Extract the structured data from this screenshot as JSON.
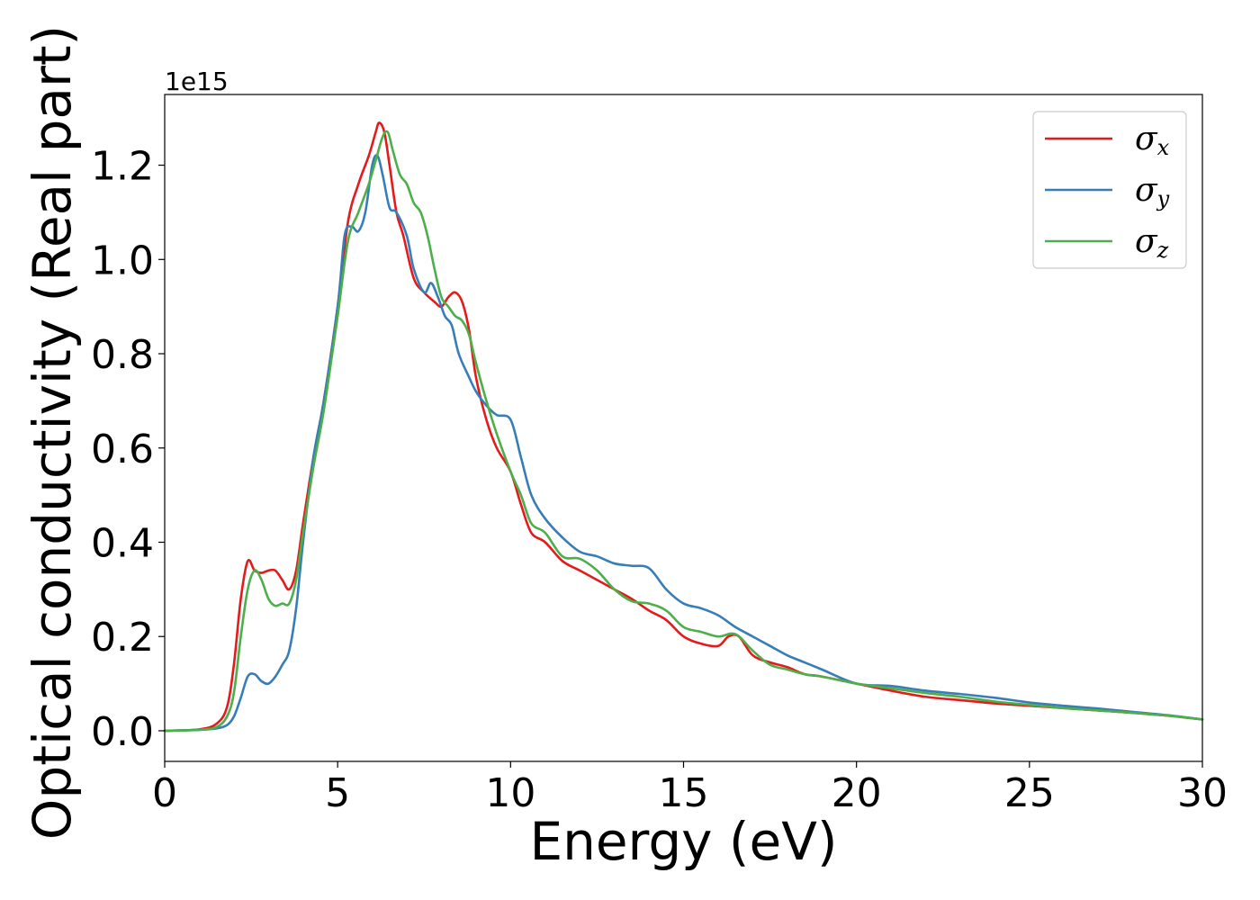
{
  "chart_data": {
    "type": "line",
    "title": "",
    "xlabel": "Energy (eV)",
    "ylabel": "Optical conductivity (Real part)",
    "y_offset_label": "1e15",
    "xlim": [
      0,
      30
    ],
    "ylim": [
      -0.065,
      1.35
    ],
    "x_ticks": [
      0,
      5,
      10,
      15,
      20,
      25,
      30
    ],
    "x_tick_labels": [
      "0",
      "5",
      "10",
      "15",
      "20",
      "25",
      "30"
    ],
    "y_ticks": [
      0.0,
      0.2,
      0.4,
      0.6,
      0.8,
      1.0,
      1.2
    ],
    "y_tick_labels": [
      "0.0",
      "0.2",
      "0.4",
      "0.6",
      "0.8",
      "1.0",
      "1.2"
    ],
    "grid": false,
    "legend_position": "top-right",
    "series": [
      {
        "name": "σx",
        "symbol": "σ",
        "subscript": "x",
        "color": "#e41a1c",
        "x": [
          0,
          1,
          1.5,
          1.8,
          2.0,
          2.2,
          2.4,
          2.6,
          2.8,
          3.0,
          3.2,
          3.4,
          3.6,
          3.8,
          4.0,
          4.3,
          4.6,
          5.0,
          5.3,
          5.6,
          5.9,
          6.1,
          6.2,
          6.35,
          6.5,
          6.7,
          6.9,
          7.2,
          7.5,
          7.8,
          8.0,
          8.2,
          8.4,
          8.6,
          8.8,
          9.0,
          9.3,
          9.6,
          10.0,
          10.3,
          10.6,
          11.0,
          11.5,
          12.0,
          12.5,
          13.0,
          13.5,
          14.0,
          14.5,
          15.0,
          15.5,
          16.0,
          16.3,
          16.6,
          17.0,
          17.5,
          18.0,
          18.5,
          19.0,
          20.0,
          21.0,
          22.0,
          23.0,
          24.0,
          25.0,
          26.0,
          27.0,
          28.0,
          29.0,
          30.0
        ],
        "y": [
          0,
          0.003,
          0.015,
          0.05,
          0.14,
          0.28,
          0.36,
          0.34,
          0.335,
          0.34,
          0.34,
          0.32,
          0.3,
          0.34,
          0.44,
          0.58,
          0.7,
          0.9,
          1.08,
          1.16,
          1.22,
          1.27,
          1.29,
          1.27,
          1.2,
          1.1,
          1.05,
          0.96,
          0.93,
          0.91,
          0.9,
          0.92,
          0.93,
          0.91,
          0.85,
          0.75,
          0.66,
          0.6,
          0.55,
          0.48,
          0.42,
          0.4,
          0.36,
          0.34,
          0.32,
          0.3,
          0.28,
          0.255,
          0.235,
          0.2,
          0.185,
          0.18,
          0.2,
          0.2,
          0.16,
          0.145,
          0.135,
          0.12,
          0.115,
          0.1,
          0.085,
          0.072,
          0.065,
          0.058,
          0.053,
          0.048,
          0.043,
          0.038,
          0.032,
          0.024
        ]
      },
      {
        "name": "σy",
        "symbol": "σ",
        "subscript": "y",
        "color": "#377eb8",
        "x": [
          0,
          1,
          1.5,
          1.8,
          2.0,
          2.2,
          2.4,
          2.6,
          2.8,
          3.0,
          3.2,
          3.4,
          3.6,
          3.8,
          4.0,
          4.3,
          4.6,
          5.0,
          5.2,
          5.4,
          5.6,
          5.8,
          6.0,
          6.15,
          6.3,
          6.5,
          6.7,
          7.0,
          7.2,
          7.5,
          7.7,
          7.9,
          8.1,
          8.3,
          8.5,
          8.8,
          9.0,
          9.3,
          9.6,
          10.0,
          10.3,
          10.6,
          11.0,
          11.5,
          12.0,
          12.5,
          13.0,
          13.5,
          14.0,
          14.5,
          15.0,
          15.5,
          16.0,
          16.5,
          17.0,
          17.5,
          18.0,
          18.5,
          19.0,
          20.0,
          21.0,
          22.0,
          23.0,
          24.0,
          25.0,
          26.0,
          27.0,
          28.0,
          29.0,
          30.0
        ],
        "y": [
          0,
          0.002,
          0.005,
          0.012,
          0.03,
          0.07,
          0.115,
          0.12,
          0.105,
          0.1,
          0.115,
          0.14,
          0.17,
          0.26,
          0.4,
          0.58,
          0.7,
          0.9,
          1.05,
          1.07,
          1.06,
          1.1,
          1.2,
          1.22,
          1.18,
          1.11,
          1.1,
          1.05,
          0.98,
          0.93,
          0.95,
          0.92,
          0.88,
          0.86,
          0.8,
          0.75,
          0.72,
          0.69,
          0.67,
          0.66,
          0.58,
          0.5,
          0.45,
          0.41,
          0.38,
          0.37,
          0.355,
          0.35,
          0.345,
          0.3,
          0.27,
          0.26,
          0.245,
          0.22,
          0.2,
          0.18,
          0.16,
          0.145,
          0.13,
          0.1,
          0.095,
          0.085,
          0.078,
          0.07,
          0.06,
          0.053,
          0.047,
          0.04,
          0.033,
          0.024
        ]
      },
      {
        "name": "σz",
        "symbol": "σ",
        "subscript": "z",
        "color": "#4daf4a",
        "x": [
          0,
          1,
          1.5,
          1.8,
          2.0,
          2.2,
          2.4,
          2.6,
          2.8,
          3.0,
          3.2,
          3.4,
          3.6,
          3.8,
          4.0,
          4.3,
          4.6,
          5.0,
          5.3,
          5.6,
          5.9,
          6.1,
          6.3,
          6.45,
          6.6,
          6.8,
          7.0,
          7.2,
          7.4,
          7.6,
          7.8,
          8.0,
          8.2,
          8.4,
          8.6,
          8.8,
          9.0,
          9.3,
          9.6,
          10.0,
          10.3,
          10.6,
          11.0,
          11.5,
          12.0,
          12.5,
          13.0,
          13.5,
          14.0,
          14.5,
          15.0,
          15.5,
          16.0,
          16.5,
          17.0,
          17.5,
          18.0,
          18.5,
          19.0,
          20.0,
          21.0,
          22.0,
          23.0,
          24.0,
          25.0,
          26.0,
          27.0,
          28.0,
          29.0,
          30.0
        ],
        "y": [
          0,
          0.002,
          0.008,
          0.03,
          0.08,
          0.2,
          0.3,
          0.34,
          0.32,
          0.28,
          0.265,
          0.27,
          0.27,
          0.32,
          0.42,
          0.56,
          0.68,
          0.88,
          1.04,
          1.1,
          1.16,
          1.21,
          1.26,
          1.27,
          1.23,
          1.18,
          1.16,
          1.12,
          1.1,
          1.05,
          0.98,
          0.92,
          0.9,
          0.88,
          0.87,
          0.84,
          0.78,
          0.7,
          0.63,
          0.55,
          0.5,
          0.44,
          0.42,
          0.37,
          0.365,
          0.34,
          0.3,
          0.275,
          0.27,
          0.255,
          0.22,
          0.21,
          0.2,
          0.205,
          0.17,
          0.14,
          0.13,
          0.12,
          0.115,
          0.1,
          0.09,
          0.08,
          0.072,
          0.062,
          0.055,
          0.048,
          0.043,
          0.038,
          0.032,
          0.024
        ]
      }
    ]
  }
}
